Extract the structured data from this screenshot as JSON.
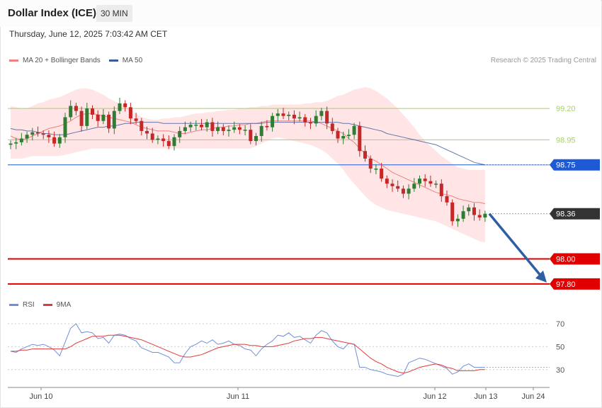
{
  "header": {
    "title": "Dollar Index (ICE)",
    "interval": "30 MIN",
    "timestamp": "Thursday, June 12, 2025 7:03:42 AM CET"
  },
  "legend": {
    "ma20_label": "MA 20 + Bollinger Bands",
    "ma50_label": "MA 50",
    "credit": "Research © 2025 Trading Central",
    "rsi_label": "RSI",
    "rsi_ma_label": "9MA"
  },
  "colors": {
    "bull": "#2e7d32",
    "bear": "#c62828",
    "ma20": "#f08080",
    "band_fill": "#ffe0e0",
    "ma50": "#3f5a9a",
    "resistance_green": "#a8cf6a",
    "pivot_blue": "#1f5ad6",
    "support_red": "#e00000",
    "current_dark": "#333333",
    "arrow": "#2e5fa3",
    "rsi": "#6f8fd8",
    "rsi_ma": "#e23a3a"
  },
  "chart_data": [
    {
      "type": "candlestick",
      "title": "Dollar Index (ICE)",
      "ylim": [
        97.72,
        99.5
      ],
      "x_ticks": [
        "Jun 10",
        "Jun 11",
        "Jun 12",
        "Jun 13",
        "Jun 24"
      ],
      "levels": [
        {
          "value": 99.2,
          "label": "99.20",
          "kind": "resistance"
        },
        {
          "value": 98.95,
          "label": "98.95",
          "kind": "resistance"
        },
        {
          "value": 98.75,
          "label": "98.75",
          "kind": "pivot"
        },
        {
          "value": 98.36,
          "label": "98.36",
          "kind": "current"
        },
        {
          "value": 98.0,
          "label": "98.00",
          "kind": "support"
        },
        {
          "value": 97.8,
          "label": "97.80",
          "kind": "support"
        }
      ],
      "closes": [
        98.92,
        98.93,
        98.96,
        98.99,
        99.01,
        99.0,
        98.99,
        98.97,
        98.92,
        98.97,
        99.13,
        99.22,
        99.18,
        99.06,
        99.2,
        99.15,
        99.1,
        99.15,
        99.04,
        99.18,
        99.24,
        99.21,
        99.12,
        99.1,
        99.02,
        99.0,
        98.95,
        98.96,
        98.94,
        98.9,
        98.97,
        99.02,
        99.05,
        99.07,
        99.07,
        99.05,
        99.09,
        99.02,
        99.05,
        99.02,
        99.03,
        99.05,
        99.03,
        99.03,
        98.94,
        98.98,
        99.06,
        99.05,
        99.14,
        99.16,
        99.14,
        99.15,
        99.12,
        99.13,
        99.09,
        99.08,
        99.14,
        99.18,
        99.08,
        99.02,
        98.96,
        98.98,
        98.99,
        99.06,
        98.86,
        98.8,
        98.72,
        98.72,
        98.64,
        98.6,
        98.58,
        98.56,
        98.52,
        98.56,
        98.6,
        98.64,
        98.62,
        98.6,
        98.6,
        98.5,
        98.45,
        98.3,
        98.32,
        98.38,
        98.41,
        98.35,
        98.33,
        98.36
      ],
      "ma20": [
        98.98,
        98.96,
        98.95,
        98.96,
        98.98,
        99.0,
        99.02,
        99.04,
        99.05,
        99.06,
        99.08,
        99.1,
        99.13,
        99.15,
        99.16,
        99.16,
        99.15,
        99.14,
        99.13,
        99.12,
        99.11,
        99.1,
        99.09,
        99.07,
        99.05,
        99.04,
        99.03,
        99.02,
        99.02,
        99.02,
        99.01,
        99.0,
        99.0,
        99.01,
        99.02,
        99.03,
        99.03,
        99.04,
        99.05,
        99.05,
        99.06,
        99.06,
        99.07,
        99.07,
        99.08,
        99.08,
        99.09,
        99.1,
        99.1,
        99.1,
        99.1,
        99.1,
        99.1,
        99.1,
        99.1,
        99.1,
        99.09,
        99.08,
        99.06,
        99.04,
        99.02,
        99.0,
        98.96,
        98.93,
        98.88,
        98.84,
        98.8,
        98.78,
        98.75,
        98.72,
        98.69,
        98.67,
        98.65,
        98.63,
        98.61,
        98.59,
        98.57,
        98.55,
        98.53,
        98.52,
        98.51,
        98.5,
        98.48,
        98.47,
        98.46,
        98.45,
        98.45,
        98.44
      ],
      "band_upper": [
        99.22,
        99.21,
        99.2,
        99.2,
        99.22,
        99.24,
        99.25,
        99.27,
        99.28,
        99.29,
        99.31,
        99.33,
        99.35,
        99.36,
        99.36,
        99.35,
        99.33,
        99.31,
        99.28,
        99.26,
        99.24,
        99.22,
        99.19,
        99.16,
        99.13,
        99.12,
        99.11,
        99.11,
        99.12,
        99.12,
        99.13,
        99.13,
        99.14,
        99.15,
        99.16,
        99.16,
        99.17,
        99.17,
        99.18,
        99.18,
        99.19,
        99.19,
        99.2,
        99.2,
        99.21,
        99.21,
        99.22,
        99.22,
        99.23,
        99.23,
        99.23,
        99.23,
        99.23,
        99.23,
        99.24,
        99.24,
        99.25,
        99.25,
        99.26,
        99.28,
        99.3,
        99.31,
        99.33,
        99.35,
        99.36,
        99.37,
        99.36,
        99.34,
        99.31,
        99.28,
        99.24,
        99.2,
        99.15,
        99.1,
        99.05,
        98.99,
        98.94,
        98.9,
        98.86,
        98.82,
        98.79,
        98.76,
        98.73,
        98.72,
        98.71,
        98.71,
        98.71,
        98.71
      ],
      "band_lower": [
        98.8,
        98.8,
        98.8,
        98.81,
        98.82,
        98.82,
        98.82,
        98.82,
        98.82,
        98.82,
        98.83,
        98.84,
        98.85,
        98.86,
        98.87,
        98.88,
        98.88,
        98.88,
        98.88,
        98.88,
        98.88,
        98.88,
        98.88,
        98.88,
        98.88,
        98.88,
        98.88,
        98.88,
        98.88,
        98.88,
        98.88,
        98.88,
        98.88,
        98.88,
        98.88,
        98.88,
        98.88,
        98.88,
        98.88,
        98.88,
        98.88,
        98.88,
        98.88,
        98.88,
        98.88,
        98.9,
        98.92,
        98.94,
        98.96,
        98.97,
        98.96,
        98.95,
        98.94,
        98.93,
        98.92,
        98.91,
        98.89,
        98.87,
        98.84,
        98.8,
        98.76,
        98.71,
        98.65,
        98.6,
        98.55,
        98.5,
        98.46,
        98.43,
        98.41,
        98.39,
        98.38,
        98.37,
        98.36,
        98.35,
        98.34,
        98.33,
        98.32,
        98.31,
        98.3,
        98.28,
        98.26,
        98.24,
        98.22,
        98.2,
        98.18,
        98.16,
        98.14,
        98.13
      ],
      "ma50": [
        99.04,
        99.03,
        99.03,
        99.02,
        99.02,
        99.01,
        99.0,
        99.0,
        98.99,
        98.99,
        98.99,
        99.0,
        99.01,
        99.02,
        99.03,
        99.04,
        99.05,
        99.05,
        99.06,
        99.06,
        99.07,
        99.08,
        99.08,
        99.09,
        99.09,
        99.09,
        99.09,
        99.09,
        99.08,
        99.08,
        99.08,
        99.08,
        99.08,
        99.08,
        99.08,
        99.08,
        99.08,
        99.08,
        99.08,
        99.08,
        99.08,
        99.08,
        99.08,
        99.08,
        99.08,
        99.08,
        99.08,
        99.09,
        99.09,
        99.09,
        99.09,
        99.09,
        99.09,
        99.09,
        99.09,
        99.09,
        99.09,
        99.09,
        99.09,
        99.09,
        99.09,
        99.08,
        99.08,
        99.07,
        99.06,
        99.05,
        99.04,
        99.03,
        99.02,
        99.0,
        98.99,
        98.98,
        98.97,
        98.96,
        98.95,
        98.94,
        98.93,
        98.92,
        98.91,
        98.89,
        98.87,
        98.85,
        98.83,
        98.81,
        98.79,
        98.77,
        98.76,
        98.75
      ]
    },
    {
      "type": "line",
      "title": "RSI",
      "ylim": [
        20,
        78
      ],
      "y_ticks": [
        70,
        50,
        30
      ],
      "series": [
        {
          "name": "RSI",
          "values": [
            46,
            45,
            48,
            50,
            52,
            51,
            52,
            50,
            47,
            42,
            54,
            66,
            70,
            62,
            63,
            62,
            57,
            58,
            53,
            60,
            61,
            60,
            57,
            55,
            49,
            47,
            45,
            45,
            43,
            41,
            36,
            36,
            44,
            50,
            52,
            55,
            53,
            56,
            52,
            53,
            55,
            52,
            51,
            48,
            47,
            42,
            48,
            52,
            55,
            60,
            59,
            62,
            58,
            59,
            56,
            53,
            60,
            64,
            62,
            55,
            50,
            48,
            53,
            52,
            32,
            32,
            30,
            29,
            28,
            26,
            25,
            24,
            26,
            36,
            38,
            40,
            39,
            37,
            35,
            33,
            31,
            26,
            28,
            33,
            35,
            32,
            32,
            32
          ]
        },
        {
          "name": "9MA",
          "values": [
            46,
            46,
            47,
            47,
            48,
            48,
            48,
            48,
            48,
            48,
            48,
            50,
            53,
            55,
            57,
            59,
            59,
            59,
            60,
            60,
            60,
            59,
            58,
            57,
            56,
            54,
            52,
            50,
            48,
            46,
            44,
            42,
            41,
            41,
            42,
            43,
            45,
            47,
            49,
            50,
            51,
            52,
            52,
            52,
            51,
            51,
            50,
            50,
            50,
            51,
            52,
            53,
            55,
            56,
            57,
            57,
            58,
            58,
            57,
            56,
            55,
            54,
            53,
            52,
            48,
            44,
            40,
            37,
            35,
            32,
            30,
            28,
            27,
            28,
            30,
            32,
            33,
            34,
            35,
            34,
            32,
            31,
            29,
            29,
            29,
            29,
            30,
            30
          ]
        }
      ]
    }
  ]
}
